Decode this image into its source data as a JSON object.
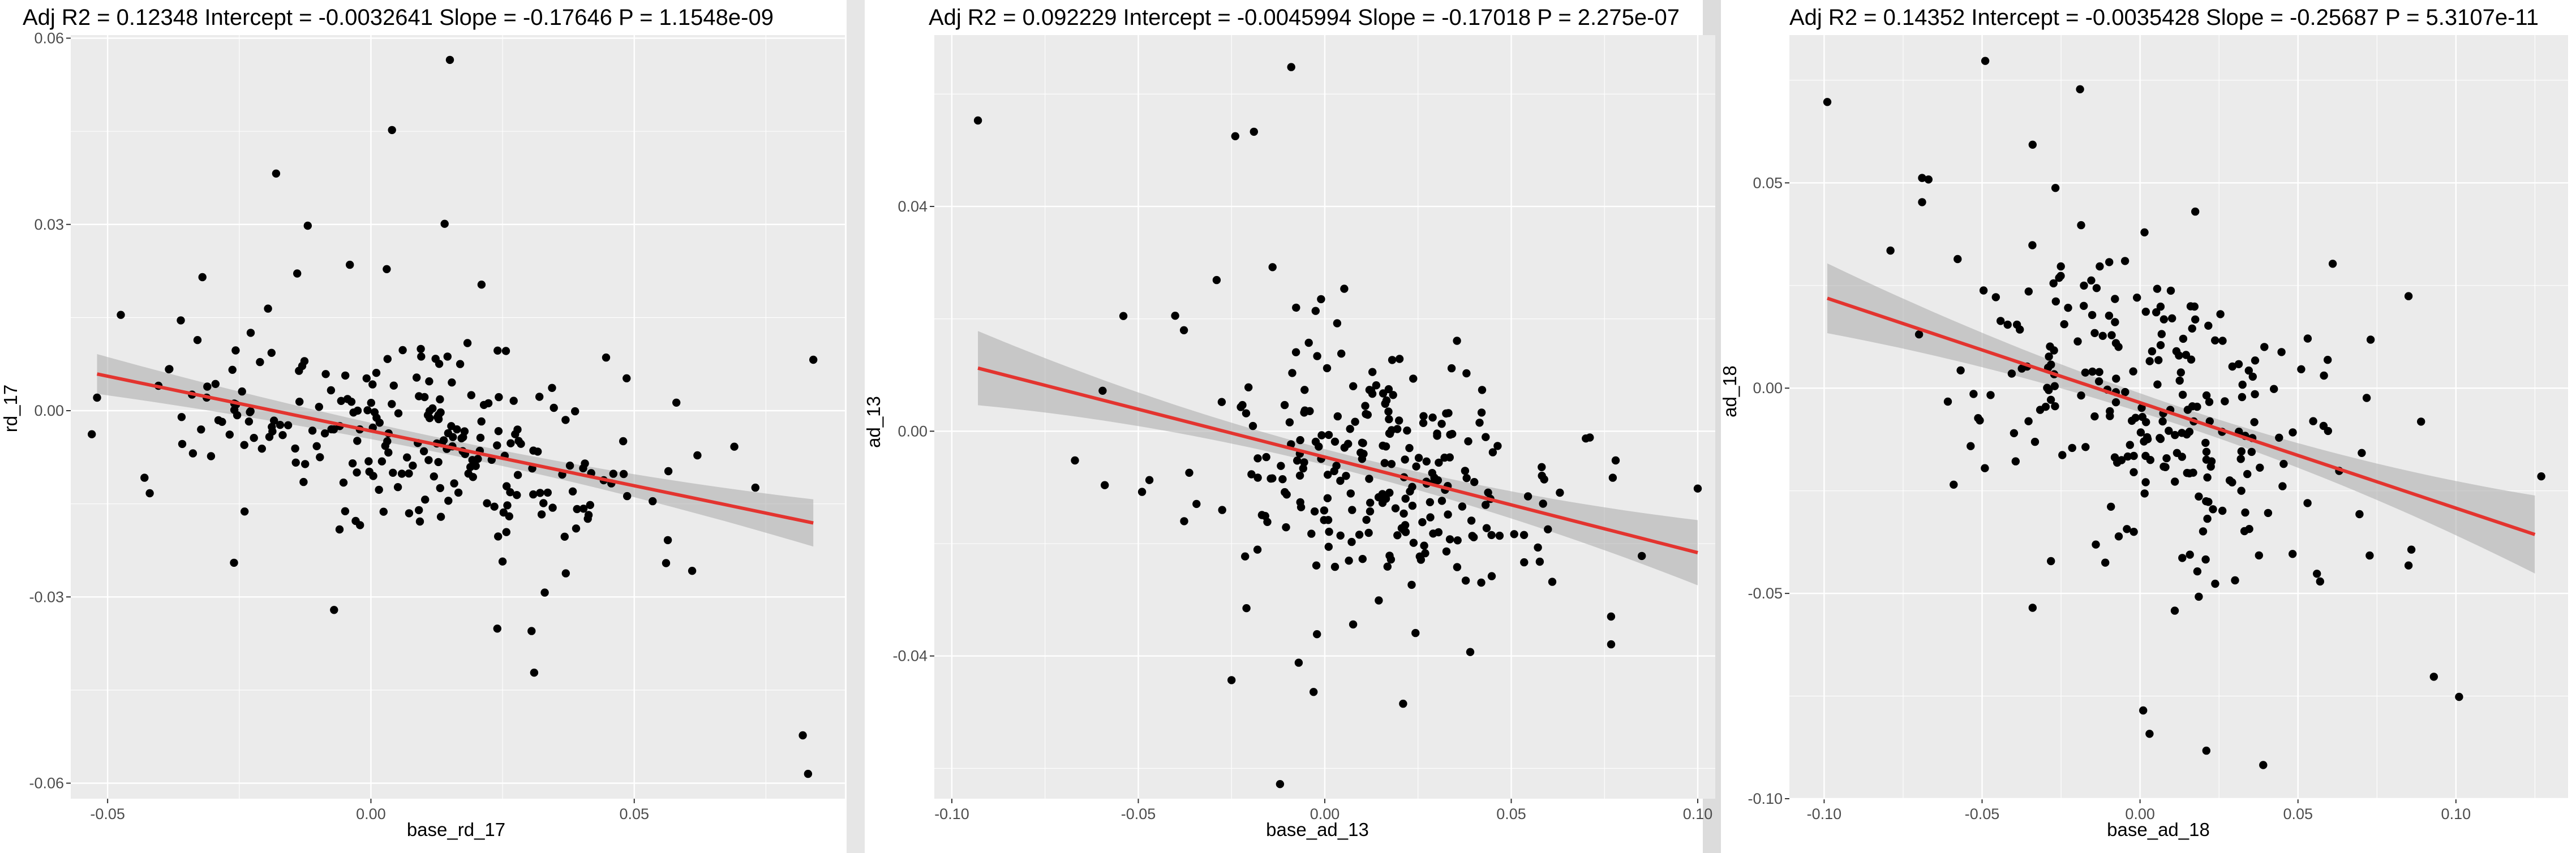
{
  "chart_data": [
    {
      "type": "scatter",
      "title": "Adj R2 =  0.12348 Intercept = -0.0032641  Slope = -0.17646  P = 1.1548e-09",
      "xlabel": "base_rd_17",
      "ylabel": "rd_17",
      "xlim": [
        -0.057,
        0.09
      ],
      "ylim": [
        -0.0625,
        0.0605
      ],
      "xticks": [
        -0.05,
        0.0,
        0.05
      ],
      "xtick_labels": [
        "-0.05",
        "0.00",
        "0.05"
      ],
      "yticks": [
        -0.06,
        -0.03,
        0.0,
        0.03,
        0.06
      ],
      "ytick_labels": [
        "-0.06",
        "-0.03",
        "0.00",
        "0.03",
        "0.06"
      ],
      "grid": true,
      "fit": {
        "intercept": -0.0032641,
        "slope": -0.17646,
        "x_range": [
          -0.052,
          0.084
        ],
        "band_halfwidth": [
          0.0032,
          0.0012,
          0.0038
        ],
        "color": "#e3342f"
      },
      "seed": 17,
      "n_bulk": 230,
      "bulk": {
        "mean_x": 0.006,
        "sd_x": 0.022,
        "sd_y": 0.0085
      },
      "points": [
        [
          0.015,
          0.0565
        ],
        [
          0.004,
          0.0452
        ],
        [
          -0.018,
          0.0382
        ],
        [
          -0.012,
          0.0298
        ],
        [
          0.014,
          0.0301
        ],
        [
          0.003,
          0.0228
        ],
        [
          -0.004,
          0.0235
        ],
        [
          -0.032,
          0.0215
        ],
        [
          -0.014,
          0.0221
        ],
        [
          0.021,
          0.0203
        ],
        [
          -0.052,
          0.0021
        ],
        [
          -0.053,
          -0.0038
        ],
        [
          -0.042,
          -0.0133
        ],
        [
          -0.043,
          -0.0108
        ],
        [
          -0.026,
          -0.0245
        ],
        [
          -0.007,
          -0.0321
        ],
        [
          0.025,
          -0.0243
        ],
        [
          0.024,
          -0.0351
        ],
        [
          0.031,
          -0.0422
        ],
        [
          0.033,
          -0.0293
        ],
        [
          0.061,
          -0.0258
        ],
        [
          0.069,
          -0.0058
        ],
        [
          0.062,
          -0.0072
        ],
        [
          0.058,
          0.0013
        ],
        [
          0.082,
          -0.0523
        ],
        [
          0.083,
          -0.0585
        ],
        [
          0.084,
          0.0082
        ],
        [
          0.073,
          -0.0124
        ],
        [
          0.048,
          -0.0102
        ],
        [
          0.037,
          -0.0262
        ]
      ]
    },
    {
      "type": "scatter",
      "title": "Adj R2 =  0.092229 Intercept = -0.0045994  Slope = -0.17018  P = 2.275e-07",
      "xlabel": "base_ad_13",
      "ylabel": "ad_13",
      "xlim": [
        -0.1047,
        0.1047
      ],
      "ylim": [
        -0.0654,
        0.0705
      ],
      "xticks": [
        -0.1,
        -0.05,
        0.0,
        0.05,
        0.1
      ],
      "xtick_labels": [
        "-0.10",
        "-0.05",
        "0.00",
        "0.05",
        "0.10"
      ],
      "yticks": [
        -0.04,
        0.0,
        0.04
      ],
      "ytick_labels": [
        "-0.04",
        "0.00",
        "0.04"
      ],
      "grid": true,
      "fit": {
        "intercept": -0.0045994,
        "slope": -0.17018,
        "x_range": [
          -0.093,
          0.1
        ],
        "band_halfwidth": [
          0.0066,
          0.0014,
          0.0058
        ],
        "color": "#e3342f"
      },
      "seed": 13,
      "n_bulk": 235,
      "bulk": {
        "mean_x": 0.01,
        "sd_x": 0.026,
        "sd_y": 0.0115
      },
      "points": [
        [
          -0.093,
          0.0553
        ],
        [
          -0.009,
          0.0648
        ],
        [
          -0.024,
          0.0525
        ],
        [
          -0.019,
          0.0533
        ],
        [
          -0.014,
          0.0292
        ],
        [
          -0.029,
          0.0269
        ],
        [
          -0.054,
          0.0205
        ],
        [
          -0.067,
          -0.0052
        ],
        [
          -0.059,
          -0.0096
        ],
        [
          -0.049,
          -0.0108
        ],
        [
          -0.021,
          -0.0315
        ],
        [
          -0.025,
          -0.0443
        ],
        [
          -0.003,
          -0.0464
        ],
        [
          -0.007,
          -0.0412
        ],
        [
          -0.012,
          -0.0628
        ],
        [
          0.021,
          -0.0485
        ],
        [
          0.039,
          -0.0393
        ],
        [
          0.061,
          -0.0268
        ],
        [
          0.078,
          -0.0052
        ],
        [
          0.085,
          -0.0222
        ],
        [
          0.1,
          -0.0102
        ],
        [
          0.07,
          -0.0013
        ],
        [
          0.038,
          0.0103
        ],
        [
          0.034,
          0.0112
        ],
        [
          -0.001,
          0.0235
        ]
      ]
    },
    {
      "type": "scatter",
      "title": "Adj R2 =  0.14352 Intercept = -0.0035428  Slope = -0.25687  P = 5.3107e-11",
      "xlabel": "base_ad_18",
      "ylabel": "ad_18",
      "xlim": [
        -0.111,
        0.1355
      ],
      "ylim": [
        -0.1,
        0.086
      ],
      "xticks": [
        -0.1,
        -0.05,
        0.0,
        0.05,
        0.1
      ],
      "xtick_labels": [
        "-0.10",
        "-0.05",
        "0.00",
        "0.05",
        "0.10"
      ],
      "yticks": [
        -0.1,
        -0.05,
        0.0,
        0.05
      ],
      "ytick_labels": [
        "-0.10",
        "-0.05",
        "0.00",
        "0.05"
      ],
      "grid": true,
      "fit": {
        "intercept": -0.0035428,
        "slope": -0.25687,
        "x_range": [
          -0.099,
          0.125
        ],
        "band_halfwidth": [
          0.0085,
          0.0022,
          0.0095
        ],
        "color": "#e3342f"
      },
      "seed": 18,
      "n_bulk": 235,
      "bulk": {
        "mean_x": 0.005,
        "sd_x": 0.031,
        "sd_y": 0.0178
      },
      "points": [
        [
          -0.099,
          0.0697
        ],
        [
          -0.049,
          0.0797
        ],
        [
          -0.019,
          0.0728
        ],
        [
          -0.034,
          0.0593
        ],
        [
          -0.069,
          0.0512
        ],
        [
          -0.069,
          0.0453
        ],
        [
          -0.079,
          0.0335
        ],
        [
          -0.059,
          -0.0235
        ],
        [
          -0.034,
          -0.0535
        ],
        [
          0.001,
          -0.0785
        ],
        [
          0.003,
          -0.0842
        ],
        [
          0.021,
          -0.0883
        ],
        [
          0.039,
          -0.0918
        ],
        [
          0.093,
          -0.0703
        ],
        [
          0.101,
          -0.0752
        ],
        [
          0.085,
          -0.0432
        ],
        [
          0.085,
          0.0224
        ],
        [
          0.061,
          0.0303
        ],
        [
          0.073,
          0.0118
        ],
        [
          0.127,
          -0.0215
        ],
        [
          0.056,
          -0.0452
        ],
        [
          0.057,
          -0.0471
        ],
        [
          0.011,
          -0.0542
        ],
        [
          -0.011,
          -0.0425
        ],
        [
          -0.014,
          -0.0381
        ]
      ]
    }
  ]
}
